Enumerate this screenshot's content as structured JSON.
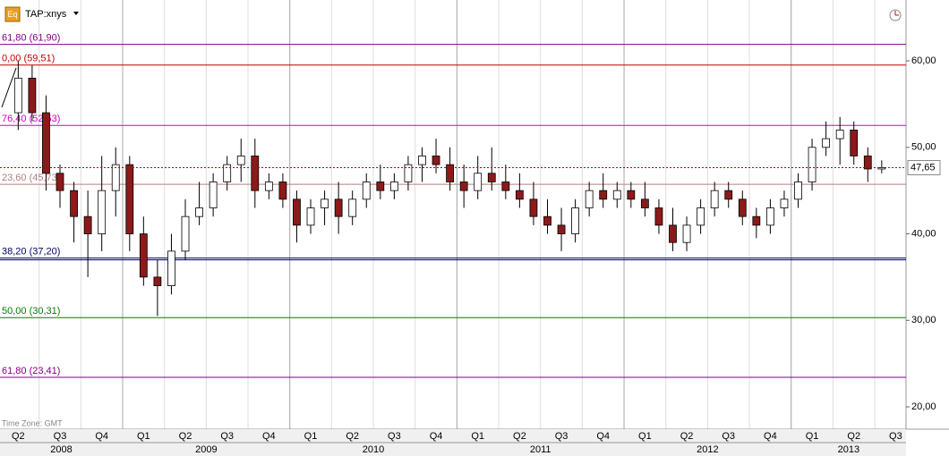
{
  "chart_data": {
    "type": "candlestick",
    "symbol": "TAP:xnys",
    "icon_label": "Eq",
    "footnote": "Time Zone: GMT",
    "ylim": [
      17.42,
      67.03
    ],
    "yticks": [
      {
        "value": 20,
        "label": "20,00"
      },
      {
        "value": 30,
        "label": "30,00"
      },
      {
        "value": 40,
        "label": "40,00"
      },
      {
        "value": 50,
        "label": "50,00"
      },
      {
        "value": 60,
        "label": "60,00"
      }
    ],
    "quarters": [
      "Q2",
      "Q3",
      "Q4",
      "Q1",
      "Q2",
      "Q3",
      "Q4",
      "Q1",
      "Q2",
      "Q3",
      "Q4",
      "Q1",
      "Q2",
      "Q3",
      "Q4",
      "Q1",
      "Q2",
      "Q3",
      "Q4",
      "Q1",
      "Q2",
      "Q3"
    ],
    "years": [
      "2008",
      "2009",
      "2010",
      "2011",
      "2012",
      "2013"
    ],
    "last_price": {
      "value": 47.65,
      "label": "47,65",
      "color": "#c00000"
    },
    "levels": [
      {
        "label": "61,80 (61,90)",
        "value": 61.9,
        "color": "#800080"
      },
      {
        "label": "0,00 (59,51)",
        "value": 59.51,
        "color": "#c00000"
      },
      {
        "label": "76,40 (52,53)",
        "value": 52.53,
        "color": "#d000d0"
      },
      {
        "label": "23,60 (45,73)",
        "value": 45.73,
        "color": "#b08080"
      },
      {
        "label": "38,20 (37,20)",
        "value": 37.2,
        "color": "#000060"
      },
      {
        "label": "50,00 (30,31)",
        "value": 30.31,
        "color": "#008000"
      },
      {
        "label": "61,80 (23,41)",
        "value": 23.41,
        "color": "#800080"
      }
    ],
    "up_color": "#ffffff",
    "down_color": "#8b1a1a",
    "open": [
      54,
      58,
      54,
      47,
      45,
      42,
      40,
      45,
      48,
      40,
      35,
      34,
      38,
      42,
      43,
      46,
      48,
      49,
      45,
      46,
      44,
      41,
      43,
      44,
      42,
      44,
      46,
      45,
      46,
      48,
      49,
      48,
      46,
      45,
      47,
      46,
      45,
      44,
      42,
      41,
      40,
      43,
      45,
      44,
      45,
      44,
      43,
      41,
      39,
      41,
      43,
      45,
      44,
      42,
      41,
      43,
      44,
      46,
      50,
      51,
      52,
      49,
      47.5
    ],
    "high": [
      60,
      59.5,
      56,
      48,
      46,
      45,
      49,
      50,
      49,
      42,
      37,
      40,
      44,
      46,
      47,
      49,
      51,
      51,
      47,
      47,
      45,
      44,
      45,
      46,
      45,
      47,
      48,
      47,
      49,
      50,
      51,
      50,
      48,
      49,
      50,
      48,
      47,
      46,
      44,
      43,
      44,
      46,
      47,
      46,
      46,
      46,
      44,
      43,
      42,
      44,
      46,
      46,
      45,
      43,
      44,
      45,
      47,
      51,
      53,
      53.5,
      53,
      50,
      48.5
    ],
    "low": [
      52,
      53,
      45,
      43,
      39,
      35,
      38,
      42,
      38,
      34,
      30.5,
      33,
      37,
      41,
      42,
      45,
      46,
      43,
      44,
      43,
      39,
      40,
      41,
      40,
      41,
      43,
      44,
      44,
      45,
      46,
      47,
      45,
      43,
      44,
      45,
      44,
      43,
      41,
      40,
      38,
      39,
      42,
      43,
      43,
      43,
      42,
      40,
      38,
      38,
      40,
      42,
      43,
      41,
      39.5,
      40,
      42,
      43,
      45,
      49,
      48,
      48,
      46,
      47
    ],
    "close": [
      58,
      54,
      47,
      45,
      42,
      40,
      45,
      48,
      40,
      35,
      34,
      38,
      42,
      43,
      46,
      48,
      49,
      45,
      46,
      44,
      41,
      43,
      44,
      42,
      44,
      46,
      45,
      46,
      48,
      49,
      48,
      46,
      45,
      47,
      46,
      45,
      44,
      42,
      41,
      40,
      43,
      45,
      44,
      45,
      44,
      43,
      41,
      39,
      41,
      43,
      45,
      44,
      42,
      41,
      43,
      44,
      46,
      50,
      51,
      52,
      49,
      47.5,
      47.65
    ]
  }
}
